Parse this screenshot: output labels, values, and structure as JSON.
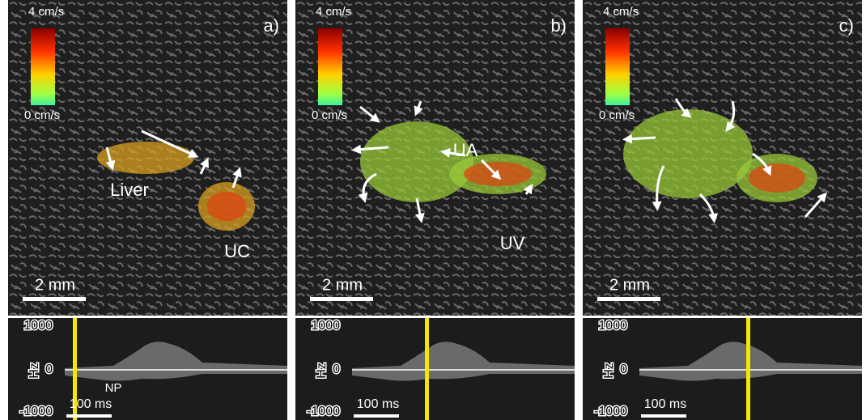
{
  "panels": [
    {
      "label": "a)",
      "colorbar": {
        "max": "4 cm/s",
        "min": "0 cm/s"
      },
      "annotations": [
        "Liver",
        "UC"
      ],
      "scale_bar": "2 mm",
      "spectrogram": {
        "yticks": [
          1000,
          0,
          -1000
        ],
        "ylabel": "Hz",
        "annotations": [
          "NP"
        ],
        "time_bar": "100 ms"
      }
    },
    {
      "label": "b)",
      "colorbar": {
        "max": "4 cm/s",
        "min": "0 cm/s"
      },
      "annotations": [
        "UA",
        "UV"
      ],
      "scale_bar": "2 mm",
      "spectrogram": {
        "yticks": [
          1000,
          0,
          -1000
        ],
        "ylabel": "Hz",
        "time_bar": "100 ms"
      }
    },
    {
      "label": "c)",
      "colorbar": {
        "max": "4 cm/s",
        "min": "0 cm/s"
      },
      "scale_bar": "2 mm",
      "spectrogram": {
        "yticks": [
          1000,
          0,
          -1000
        ],
        "ylabel": "Hz",
        "time_bar": "100 ms"
      }
    }
  ]
}
